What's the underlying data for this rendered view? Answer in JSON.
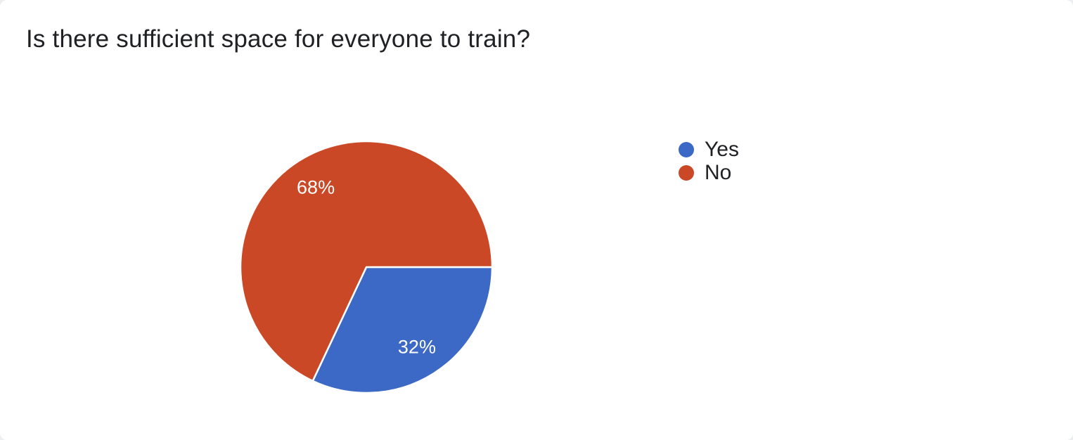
{
  "page": {
    "background_color": "#ECEEF0",
    "card_color": "#FFFFFF"
  },
  "chart_data": {
    "type": "pie",
    "title": "Is there sufficient space for everyone to train?",
    "title_color": "#202124",
    "categories": [
      "Yes",
      "No"
    ],
    "values": [
      32,
      68
    ],
    "labels": [
      "32%",
      "68%"
    ],
    "colors": [
      "#3D69C6",
      "#CB4827"
    ],
    "start_angle_deg": 0,
    "direction": "clockwise",
    "slice_separator_color": "#FFFFFF",
    "label_color": "#FFFFFF",
    "legend_position": "right",
    "legend": [
      {
        "label": "Yes",
        "color": "#3D69C6"
      },
      {
        "label": "No",
        "color": "#CB4827"
      }
    ]
  }
}
